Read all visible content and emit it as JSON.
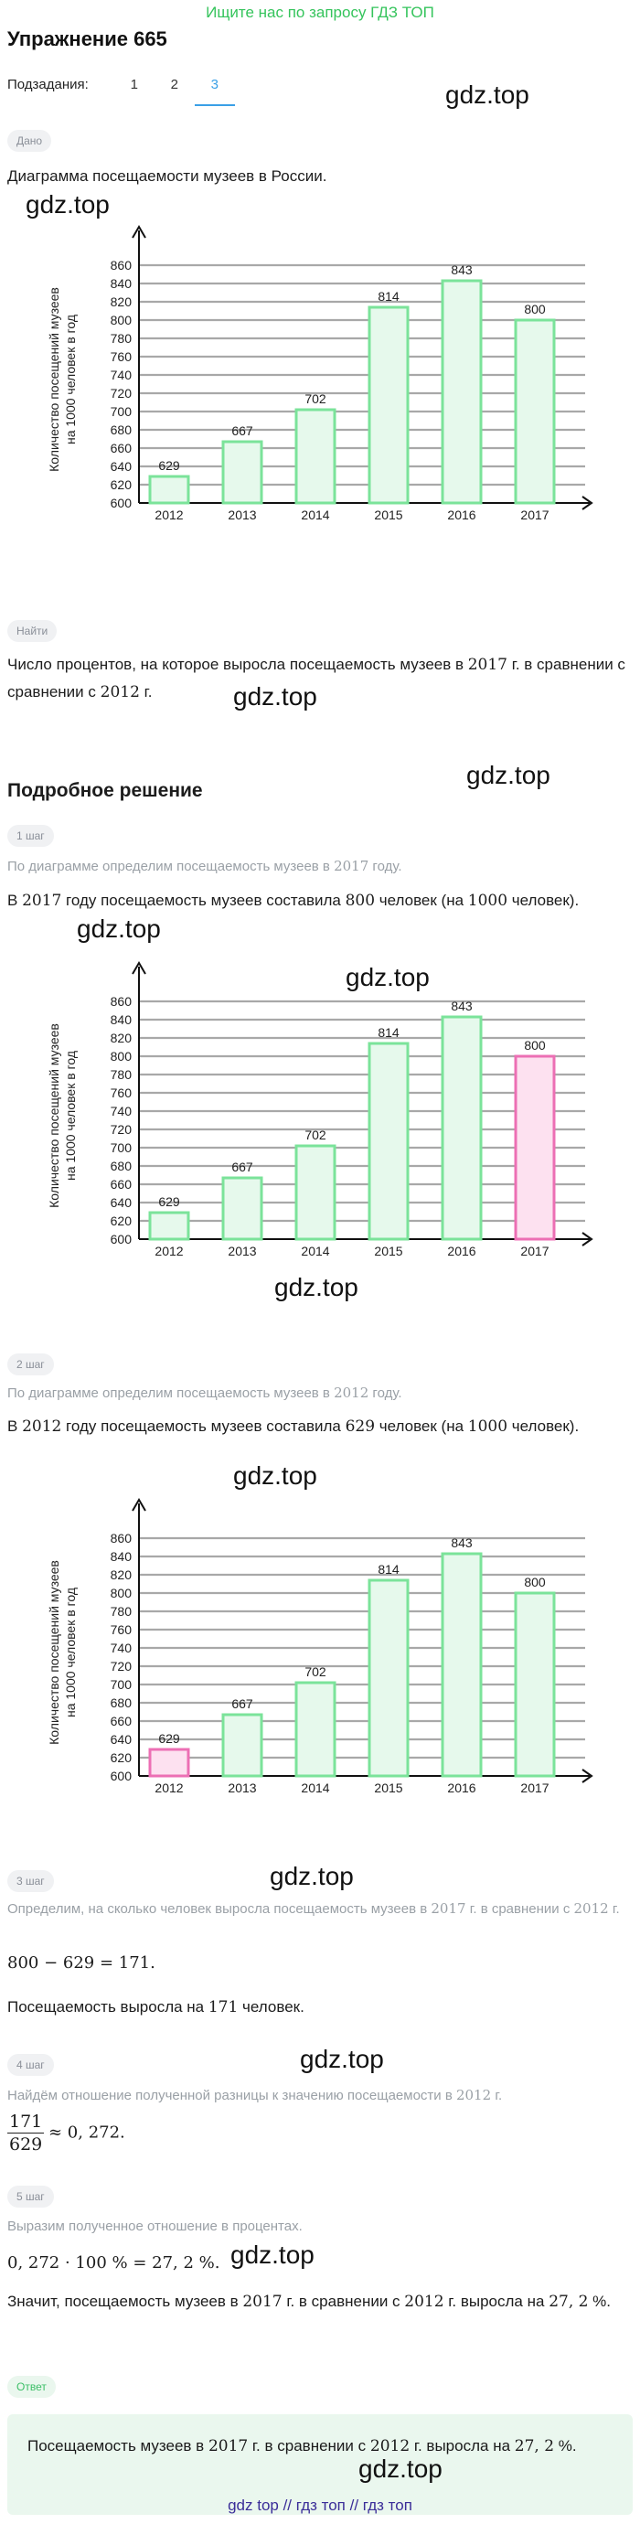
{
  "promo": "Ищите нас по запросу ГДЗ ТОП",
  "title": "Упражнение 665",
  "subtasks": {
    "label": "Подзадания:",
    "tabs": [
      "1",
      "2",
      "3"
    ],
    "active": 2
  },
  "given": {
    "badge": "Дано",
    "text": "Диаграмма посещаемости музеев в России."
  },
  "find": {
    "badge": "Найти",
    "text_a": "Число процентов, на которое выросла посещаемость музеев в ",
    "year_a": "2017",
    "text_b": " г. в сравнении с ",
    "year_b": "2012",
    "text_c": " г."
  },
  "solution_title": "Подробное решение",
  "step1": {
    "badge": "1 шаг",
    "hint_a": "По диаграмме определим посещаемость музеев в ",
    "hint_year": "2017",
    "hint_b": " году.",
    "res_a": "В ",
    "res_year": "2017",
    "res_b": " году посещаемость музеев составила ",
    "res_val": "800",
    "res_c": " человек (на ",
    "res_base": "1000",
    "res_d": " человек)."
  },
  "step2": {
    "badge": "2 шаг",
    "hint_a": "По диаграмме определим посещаемость музеев в ",
    "hint_year": "2012",
    "hint_b": " году.",
    "res_a": "В ",
    "res_year": "2012",
    "res_b": " году посещаемость музеев составила ",
    "res_val": "629",
    "res_c": " человек (на ",
    "res_base": "1000",
    "res_d": " человек)."
  },
  "step3": {
    "badge": "3 шаг",
    "hint_a": "Определим, на сколько человек выросла посещаемость музеев в ",
    "hint_year_a": "2017",
    "hint_b": " г. в сравнении с ",
    "hint_year_b": "2012",
    "hint_c": " г.",
    "equation": "800 − 629 = 171.",
    "res_a": "Посещаемость выросла на ",
    "res_val": "171",
    "res_b": " человек."
  },
  "step4": {
    "badge": "4 шаг",
    "hint_a": "Найдём отношение полученной разницы к значению посещаемости в ",
    "hint_year": "2012",
    "hint_b": " г.",
    "num": "171",
    "den": "629",
    "approx": "≈ 0, 272."
  },
  "step5": {
    "badge": "5 шаг",
    "hint": "Выразим полученное отношение в процентах.",
    "equation": "0, 272 · 100 %  = 27, 2 %.",
    "res_a": "Значит, посещаемость музеев в ",
    "res_year_a": "2017",
    "res_b": " г. в сравнении с ",
    "res_year_b": "2012",
    "res_c": " г. выросла на ",
    "res_val": "27, 2",
    "res_d": " %."
  },
  "answer": {
    "badge": "Ответ",
    "text_a": "Посещаемость музеев в ",
    "year_a": "2017",
    "text_b": " г. в сравнении с ",
    "year_b": "2012",
    "text_c": " г. выросла на ",
    "val": "27, 2",
    "text_d": " %."
  },
  "watermark": "gdz.top",
  "footer": "gdz top  //  гдз топ  //  гдз топ",
  "colors": {
    "bar_stroke": "#7be39a",
    "bar_fill": "#e6f9ec",
    "highlight_stroke": "#ec6fb4",
    "highlight_fill": "#fde1f0",
    "grid": "#a8a8a8"
  },
  "chart_data": [
    {
      "type": "bar",
      "categories": [
        "2012",
        "2013",
        "2014",
        "2015",
        "2016",
        "2017"
      ],
      "values": [
        629,
        667,
        702,
        814,
        843,
        800
      ],
      "ylabel": "Количество посещений музеев на 1000 человек в год",
      "yticks": [
        600,
        620,
        640,
        660,
        680,
        700,
        720,
        740,
        760,
        780,
        800,
        820,
        840,
        860
      ],
      "ylim": [
        600,
        860
      ],
      "highlight": null
    },
    {
      "type": "bar",
      "categories": [
        "2012",
        "2013",
        "2014",
        "2015",
        "2016",
        "2017"
      ],
      "values": [
        629,
        667,
        702,
        814,
        843,
        800
      ],
      "ylabel": "Количество посещений музеев на 1000 человек в год",
      "yticks": [
        600,
        620,
        640,
        660,
        680,
        700,
        720,
        740,
        760,
        780,
        800,
        820,
        840,
        860
      ],
      "ylim": [
        600,
        860
      ],
      "highlight": "2017"
    },
    {
      "type": "bar",
      "categories": [
        "2012",
        "2013",
        "2014",
        "2015",
        "2016",
        "2017"
      ],
      "values": [
        629,
        667,
        702,
        814,
        843,
        800
      ],
      "ylabel": "Количество посещений музеев на 1000 человек в год",
      "yticks": [
        600,
        620,
        640,
        660,
        680,
        700,
        720,
        740,
        760,
        780,
        800,
        820,
        840,
        860
      ],
      "ylim": [
        600,
        860
      ],
      "highlight": "2012"
    }
  ]
}
